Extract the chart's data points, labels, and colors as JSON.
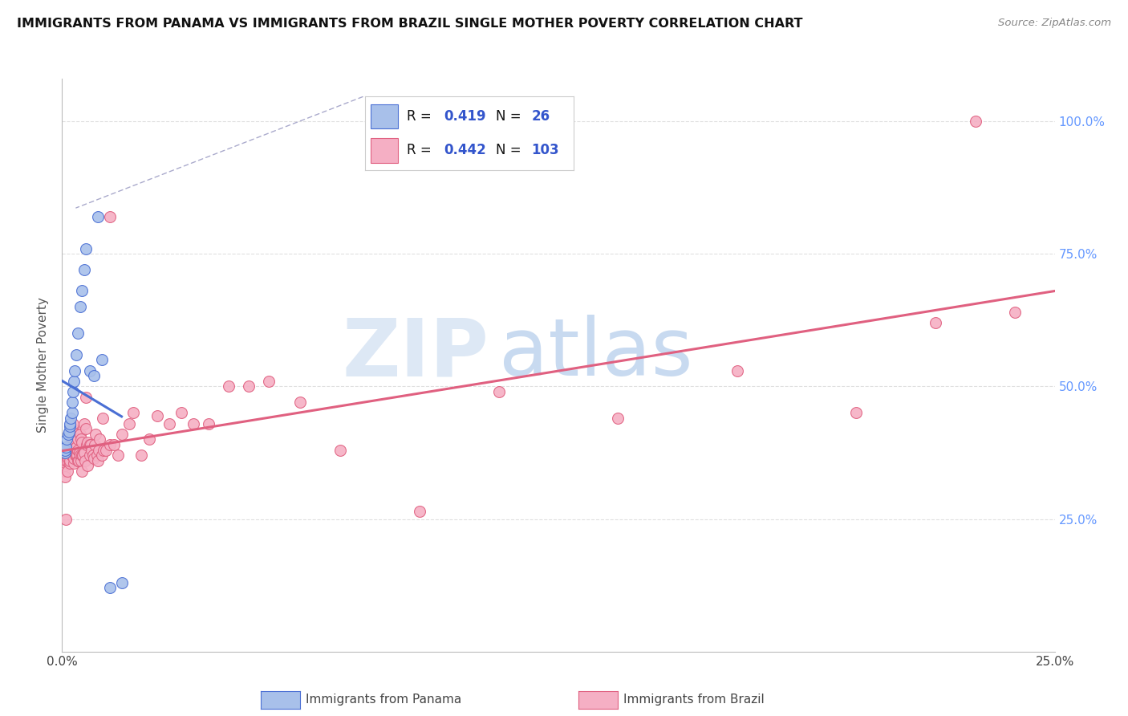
{
  "title": "IMMIGRANTS FROM PANAMA VS IMMIGRANTS FROM BRAZIL SINGLE MOTHER POVERTY CORRELATION CHART",
  "source": "Source: ZipAtlas.com",
  "ylabel": "Single Mother Poverty",
  "xlim": [
    0.0,
    0.25
  ],
  "ylim": [
    0.0,
    1.08
  ],
  "panama_R": 0.419,
  "panama_N": 26,
  "brazil_R": 0.442,
  "brazil_N": 103,
  "panama_color": "#a8c0ea",
  "brazil_color": "#f5afc4",
  "panama_line_color": "#4a6fd4",
  "brazil_line_color": "#e06080",
  "legend_text_color": "#3355cc",
  "brazil_legend_text_color": "#cc2244",
  "grid_color": "#dddddd",
  "right_tick_color": "#6699ff",
  "panama_x": [
    0.0008,
    0.0008,
    0.001,
    0.0012,
    0.0015,
    0.0018,
    0.002,
    0.002,
    0.0022,
    0.0025,
    0.0025,
    0.0028,
    0.003,
    0.0032,
    0.0035,
    0.004,
    0.0045,
    0.005,
    0.0055,
    0.006,
    0.007,
    0.008,
    0.009,
    0.01,
    0.012,
    0.015
  ],
  "panama_y": [
    0.375,
    0.38,
    0.385,
    0.4,
    0.41,
    0.415,
    0.425,
    0.43,
    0.44,
    0.45,
    0.47,
    0.49,
    0.51,
    0.53,
    0.56,
    0.6,
    0.65,
    0.68,
    0.72,
    0.76,
    0.53,
    0.52,
    0.82,
    0.55,
    0.12,
    0.13
  ],
  "brazil_x": [
    0.0005,
    0.0006,
    0.0007,
    0.0008,
    0.0009,
    0.001,
    0.001,
    0.0012,
    0.0013,
    0.0014,
    0.0015,
    0.0015,
    0.0016,
    0.0017,
    0.0018,
    0.0019,
    0.002,
    0.002,
    0.002,
    0.0022,
    0.0022,
    0.0023,
    0.0024,
    0.0025,
    0.0025,
    0.0025,
    0.0027,
    0.0028,
    0.0028,
    0.003,
    0.003,
    0.003,
    0.0032,
    0.0033,
    0.0033,
    0.0035,
    0.0035,
    0.0035,
    0.0038,
    0.004,
    0.004,
    0.004,
    0.0042,
    0.0043,
    0.0045,
    0.0045,
    0.0047,
    0.0048,
    0.005,
    0.005,
    0.005,
    0.0052,
    0.0055,
    0.0055,
    0.0057,
    0.006,
    0.006,
    0.0062,
    0.0065,
    0.0065,
    0.007,
    0.007,
    0.0072,
    0.0075,
    0.0078,
    0.008,
    0.0082,
    0.0085,
    0.0088,
    0.009,
    0.0093,
    0.0095,
    0.01,
    0.0102,
    0.0105,
    0.011,
    0.012,
    0.012,
    0.013,
    0.014,
    0.015,
    0.017,
    0.018,
    0.02,
    0.022,
    0.024,
    0.027,
    0.03,
    0.033,
    0.037,
    0.042,
    0.047,
    0.052,
    0.06,
    0.07,
    0.09,
    0.11,
    0.14,
    0.17,
    0.2,
    0.22,
    0.23,
    0.24
  ],
  "brazil_y": [
    0.36,
    0.34,
    0.35,
    0.33,
    0.355,
    0.36,
    0.25,
    0.37,
    0.34,
    0.36,
    0.375,
    0.38,
    0.365,
    0.38,
    0.37,
    0.385,
    0.355,
    0.36,
    0.39,
    0.375,
    0.39,
    0.38,
    0.37,
    0.38,
    0.39,
    0.4,
    0.42,
    0.4,
    0.43,
    0.355,
    0.365,
    0.39,
    0.38,
    0.37,
    0.395,
    0.37,
    0.385,
    0.41,
    0.37,
    0.36,
    0.38,
    0.4,
    0.36,
    0.375,
    0.37,
    0.41,
    0.36,
    0.4,
    0.34,
    0.37,
    0.395,
    0.37,
    0.375,
    0.43,
    0.36,
    0.42,
    0.48,
    0.39,
    0.35,
    0.395,
    0.37,
    0.39,
    0.39,
    0.38,
    0.37,
    0.365,
    0.39,
    0.41,
    0.37,
    0.36,
    0.38,
    0.4,
    0.37,
    0.44,
    0.38,
    0.38,
    0.39,
    0.82,
    0.39,
    0.37,
    0.41,
    0.43,
    0.45,
    0.37,
    0.4,
    0.445,
    0.43,
    0.45,
    0.43,
    0.43,
    0.5,
    0.5,
    0.51,
    0.47,
    0.38,
    0.265,
    0.49,
    0.44,
    0.53,
    0.45,
    0.62,
    1.0,
    0.64
  ]
}
